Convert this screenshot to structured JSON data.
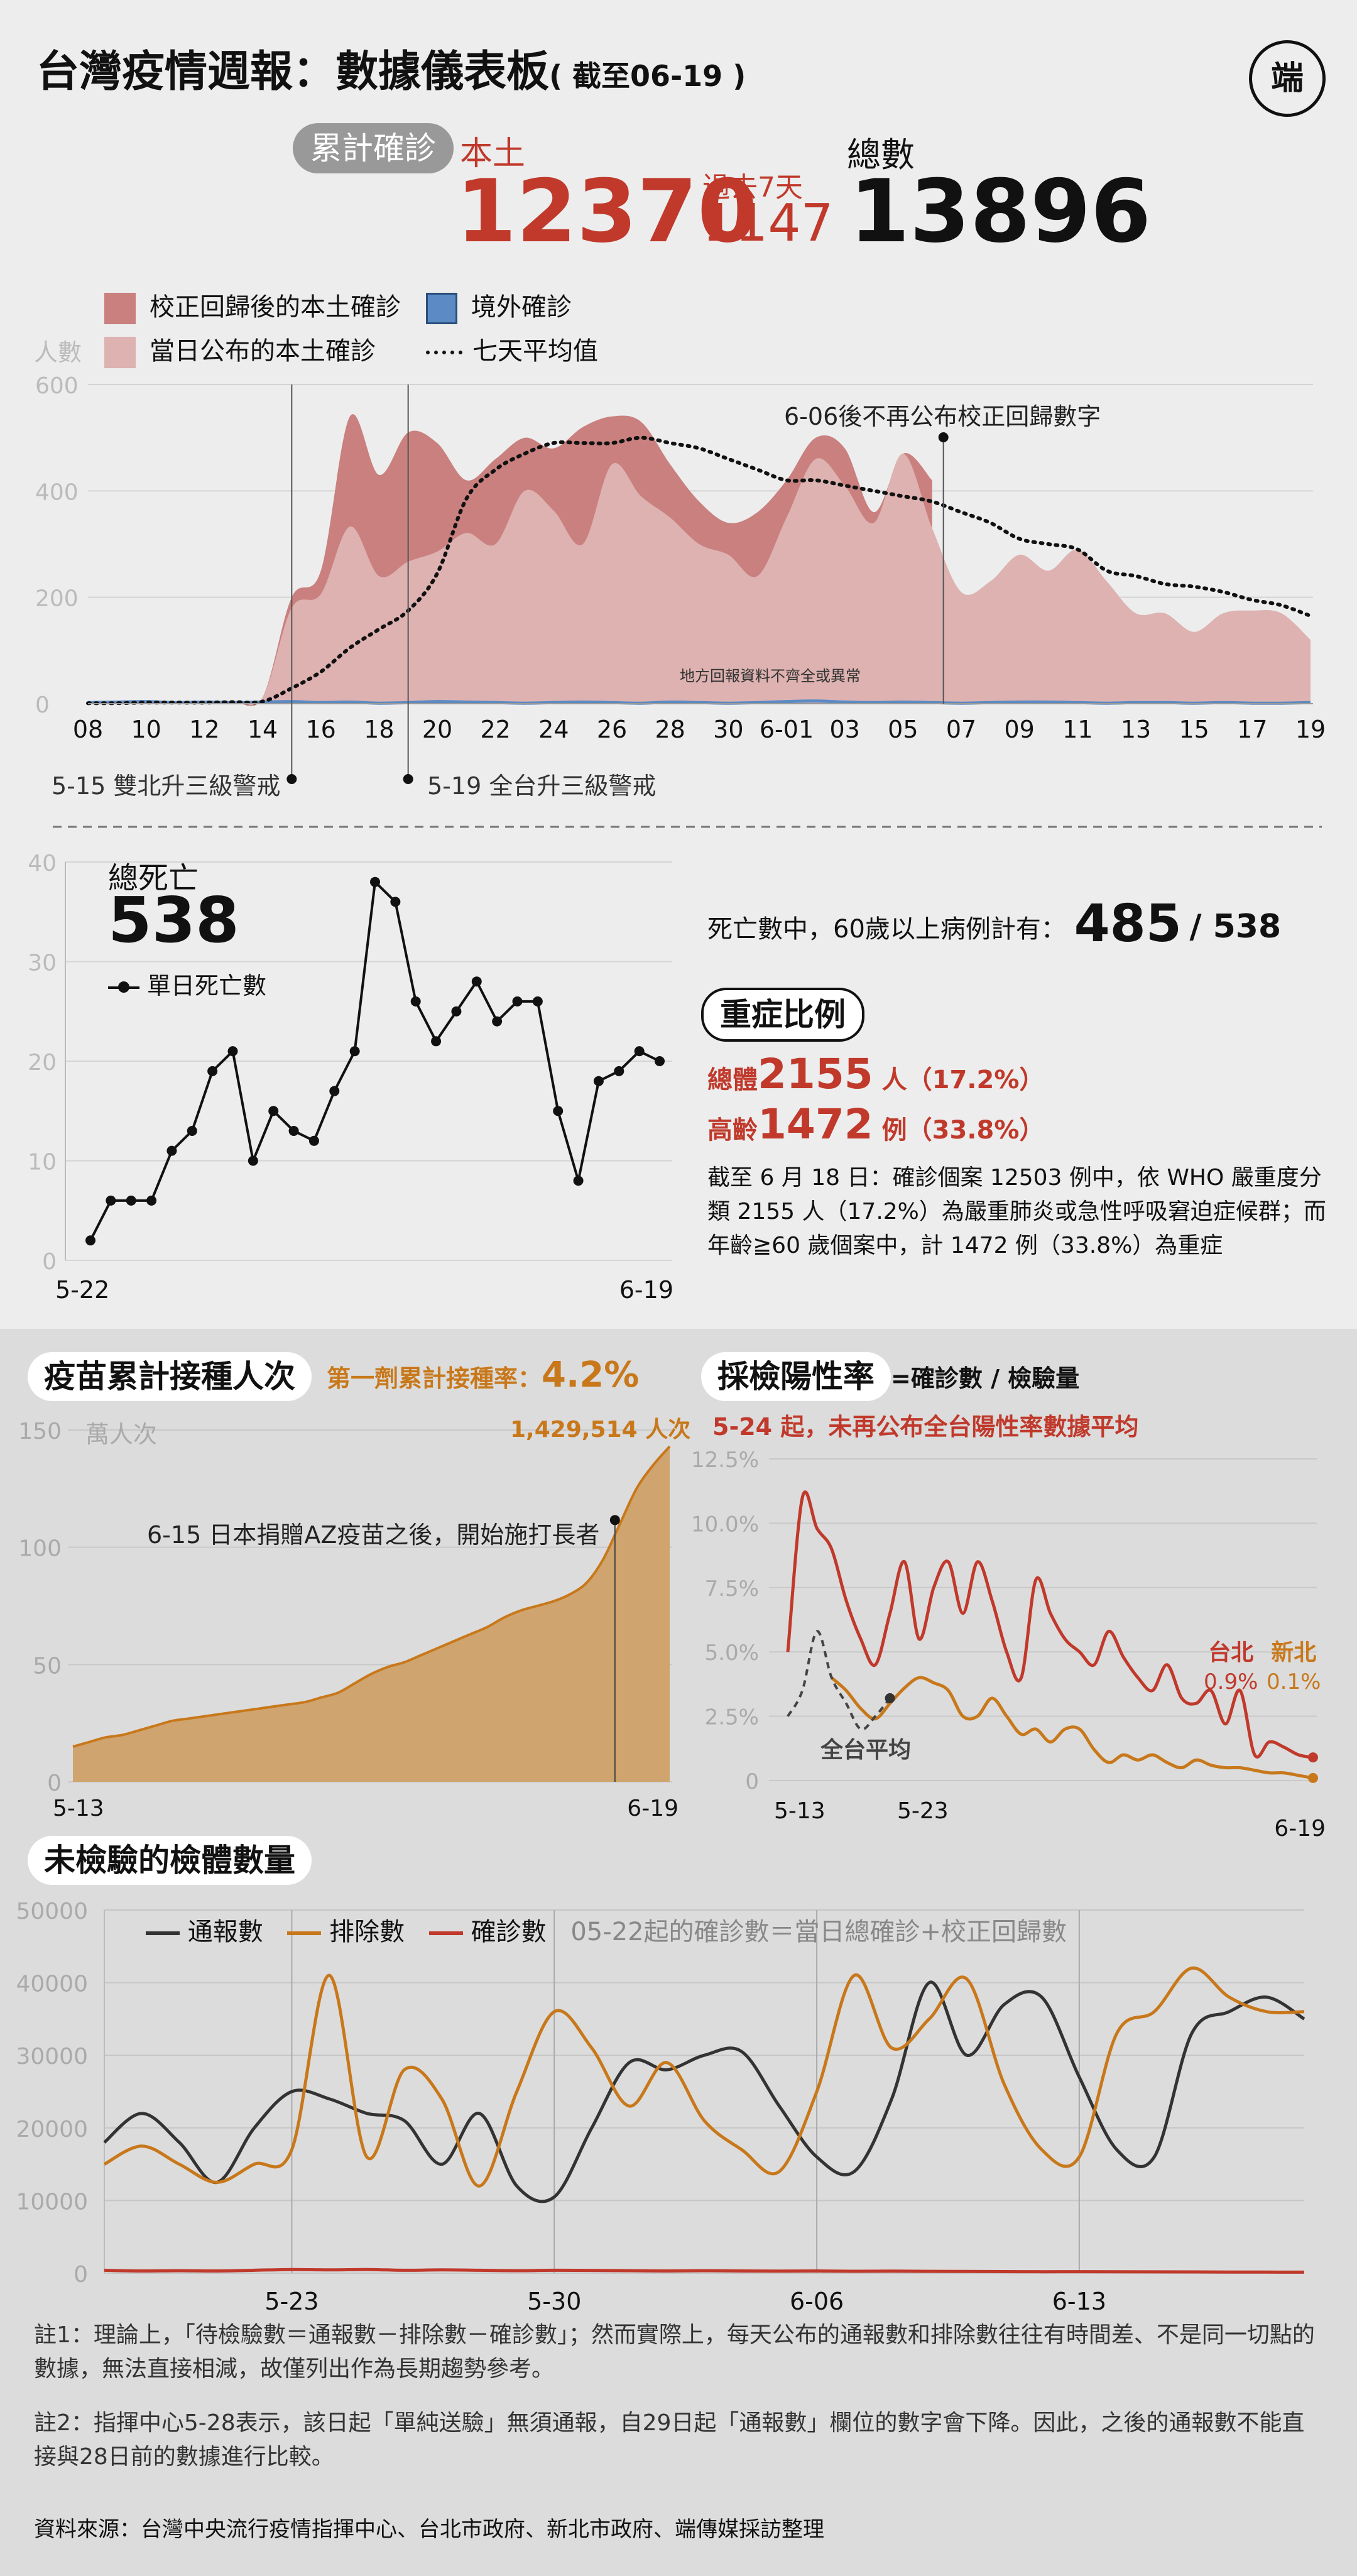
{
  "header": {
    "title": "台灣疫情週報：數據儀表板",
    "date_note": "( 截至06-19 )",
    "logo_text": "端"
  },
  "summary": {
    "pill": "累計確診",
    "local_label": "本土",
    "local_total": "12370",
    "past7_label": "過去7天",
    "past7_value": "1147",
    "total_label": "總數",
    "total_value": "13896"
  },
  "colors": {
    "corrected": "#c9807e",
    "announced": "#ddb2b0",
    "imported": "#5b8ac4",
    "red": "#c0392b",
    "orange": "#c8781a",
    "dark": "#333333"
  },
  "cases_chart": {
    "legend": [
      "校正回歸後的本土確診",
      "境外確診",
      "當日公布的本土確診",
      "七天平均值"
    ],
    "ylabel": "人數",
    "yticks": [
      "600",
      "400",
      "200",
      "0"
    ],
    "xticks": [
      "08",
      "10",
      "12",
      "14",
      "16",
      "18",
      "20",
      "22",
      "24",
      "26",
      "28",
      "30",
      "6-01",
      "03",
      "05",
      "07",
      "09",
      "11",
      "13",
      "15",
      "17",
      "19"
    ],
    "note_606": "6-06後不再公布校正回歸數字",
    "note_local": "地方回報資料不齊全或異常",
    "event_515": "5-15 雙北升三級警戒",
    "event_519": "5-19 全台升三級警戒"
  },
  "deaths": {
    "label": "總死亡",
    "total": "538",
    "legend": "單日死亡數",
    "yticks": [
      "40",
      "30",
      "20",
      "10",
      "0"
    ],
    "x_start": "5-22",
    "x_end": "6-19",
    "over60_text": "死亡數中，60歲以上病例計有：",
    "over60_value": "485",
    "over60_total": "/ 538"
  },
  "severe": {
    "pill": "重症比例",
    "overall_label": "總體",
    "overall_value": "2155",
    "overall_unit": "人（17.2%）",
    "elderly_label": "高齡",
    "elderly_value": "1472",
    "elderly_unit": "例（33.8%）",
    "paragraph": "截至 6 月 18 日：確診個案 12503 例中，依 WHO 嚴重度分類 2155 人（17.2%）為嚴重肺炎或急性呼吸窘迫症候群；而年齡≧60 歲個案中，計 1472 例（33.8%）為重症"
  },
  "vaccine": {
    "pill": "疫苗累計接種人次",
    "rate_label": "第一劑累計接種率：",
    "rate_value": "4.2%",
    "unit": "萬人次",
    "final_label": "1,429,514 人次",
    "yticks": [
      "150",
      "100",
      "50",
      "0"
    ],
    "annotation": "6-15 日本捐贈AZ疫苗之後，開始施打長者",
    "x_start": "5-13",
    "x_end": "6-19"
  },
  "positivity": {
    "pill": "採檢陽性率",
    "formula": "=確診數 / 檢驗量",
    "note": "5-24 起，未再公布全台陽性率數據平均",
    "yticks": [
      "12.5%",
      "10.0%",
      "7.5%",
      "5.0%",
      "2.5%",
      "0"
    ],
    "taipei_label": "台北",
    "taipei_value": "0.9%",
    "newtaipei_label": "新北",
    "newtaipei_value": "0.1%",
    "national_label": "全台平均",
    "x_labels": [
      "5-13",
      "5-23",
      "6-19"
    ]
  },
  "untested": {
    "pill": "未檢驗的檢體數量",
    "legend": [
      "通報數",
      "排除數",
      "確診數"
    ],
    "note": "05-22起的確診數＝當日總確診+校正回歸數",
    "yticks": [
      "50000",
      "40000",
      "30000",
      "20000",
      "10000",
      "0"
    ],
    "xticks": [
      "5-23",
      "5-30",
      "6-06",
      "6-13"
    ]
  },
  "footnotes": {
    "note1": "註1：理論上，「待檢驗數＝通報數－排除數－確診數」；然而實際上，每天公布的通報數和排除數往往有時間差、不是同一切點的數據，無法直接相減，故僅列出作為長期趨勢參考。",
    "note2": "註2：指揮中心5-28表示，該日起「單純送驗」無須通報，自29日起「通報數」欄位的數字會下降。因此，之後的通報數不能直接與28日前的數據進行比較。",
    "source": "資料來源：台灣中央流行疫情指揮中心、台北市政府、新北市政府、端傳媒採訪整理"
  },
  "chart_data": [
    {
      "type": "area",
      "title": "",
      "ylabel": "人數",
      "ylim": [
        0,
        600
      ],
      "x": [
        "05-08",
        "05-09",
        "05-10",
        "05-11",
        "05-12",
        "05-13",
        "05-14",
        "05-15",
        "05-16",
        "05-17",
        "05-18",
        "05-19",
        "05-20",
        "05-21",
        "05-22",
        "05-23",
        "05-24",
        "05-25",
        "05-26",
        "05-27",
        "05-28",
        "05-29",
        "05-30",
        "05-31",
        "06-01",
        "06-02",
        "06-03",
        "06-04",
        "06-05",
        "06-06",
        "06-07",
        "06-08",
        "06-09",
        "06-10",
        "06-11",
        "06-12",
        "06-13",
        "06-14",
        "06-15",
        "06-16",
        "06-17",
        "06-18",
        "06-19"
      ],
      "series": [
        {
          "name": "校正回歸後的本土確診",
          "values": [
            2,
            1,
            3,
            3,
            2,
            3,
            12,
            200,
            250,
            540,
            430,
            510,
            490,
            420,
            460,
            500,
            480,
            520,
            540,
            530,
            450,
            380,
            340,
            360,
            420,
            500,
            480,
            360,
            470,
            420,
            0,
            0,
            0,
            0,
            0,
            0,
            0,
            0,
            0,
            0,
            0,
            0,
            0
          ]
        },
        {
          "name": "當日公布的本土確診",
          "values": [
            2,
            1,
            3,
            3,
            2,
            3,
            12,
            180,
            206,
            333,
            240,
            267,
            286,
            321,
            300,
            400,
            363,
            300,
            450,
            390,
            350,
            300,
            280,
            240,
            350,
            460,
            410,
            340,
            470,
            330,
            210,
            230,
            280,
            250,
            290,
            230,
            170,
            170,
            135,
            170,
            175,
            170,
            120
          ]
        },
        {
          "name": "境外確診",
          "values": [
            2,
            3,
            4,
            2,
            3,
            2,
            3,
            4,
            2,
            3,
            1,
            2,
            4,
            3,
            2,
            1,
            2,
            3,
            2,
            1,
            3,
            2,
            1,
            2,
            4,
            5,
            3,
            2,
            3,
            2,
            1,
            2,
            3,
            3,
            2,
            1,
            2,
            2,
            1,
            2,
            1,
            1,
            2
          ]
        },
        {
          "name": "七天平均值",
          "values": [
            1,
            1,
            2,
            2,
            2,
            3,
            4,
            29,
            60,
            105,
            140,
            175,
            245,
            385,
            440,
            470,
            490,
            490,
            490,
            500,
            490,
            480,
            460,
            440,
            420,
            420,
            410,
            400,
            390,
            380,
            360,
            340,
            310,
            300,
            290,
            250,
            240,
            225,
            220,
            210,
            195,
            185,
            165
          ]
        }
      ]
    },
    {
      "type": "line",
      "title": "總死亡",
      "ylim": [
        0,
        40
      ],
      "x_start": "5-22",
      "x_end": "6-19",
      "series": [
        {
          "name": "單日死亡數",
          "values": [
            2,
            6,
            6,
            6,
            11,
            13,
            19,
            21,
            10,
            15,
            13,
            12,
            17,
            21,
            38,
            36,
            26,
            22,
            25,
            28,
            24,
            26,
            26,
            15,
            8,
            18,
            19,
            21,
            20
          ]
        }
      ]
    },
    {
      "type": "area",
      "title": "疫苗累計接種人次",
      "ylabel": "萬人次",
      "ylim": [
        0,
        150
      ],
      "x_start": "5-13",
      "x_end": "6-19",
      "series": [
        {
          "name": "疫苗累計接種人次",
          "values": [
            15,
            17,
            19,
            20,
            22,
            24,
            26,
            27,
            28,
            29,
            30,
            31,
            32,
            33,
            34,
            36,
            38,
            42,
            46,
            49,
            51,
            54,
            57,
            60,
            63,
            66,
            70,
            73,
            75,
            77,
            80,
            85,
            95,
            110,
            125,
            135,
            143
          ]
        }
      ]
    },
    {
      "type": "line",
      "title": "採檢陽性率",
      "ylim": [
        0,
        12.5
      ],
      "x_start": "5-13",
      "x_end": "6-19",
      "series": [
        {
          "name": "台北",
          "values": [
            5.0,
            11.0,
            9.8,
            9.0,
            7.0,
            5.5,
            4.5,
            6.5,
            8.5,
            5.5,
            7.5,
            8.5,
            6.5,
            8.5,
            7.0,
            5.0,
            4.0,
            7.8,
            6.5,
            5.5,
            5.0,
            4.5,
            5.8,
            4.8,
            4.0,
            3.5,
            4.5,
            3.2,
            3.0,
            3.5,
            2.2,
            3.5,
            1.0,
            1.5,
            1.3,
            1.0,
            0.9
          ]
        },
        {
          "name": "新北",
          "values": [
            null,
            null,
            null,
            4.0,
            3.5,
            2.8,
            2.4,
            3.0,
            3.6,
            4.0,
            3.8,
            3.5,
            2.5,
            2.5,
            3.2,
            2.5,
            1.8,
            2.0,
            1.5,
            2.0,
            2.0,
            1.2,
            0.7,
            1.0,
            0.8,
            1.0,
            0.7,
            0.5,
            0.8,
            0.6,
            0.5,
            0.5,
            0.4,
            0.3,
            0.3,
            0.2,
            0.1
          ]
        },
        {
          "name": "全台平均",
          "values": [
            2.5,
            3.5,
            5.8,
            4.0,
            3.0,
            2.0,
            2.5,
            3.2
          ]
        }
      ]
    },
    {
      "type": "line",
      "title": "未檢驗的檢體數量",
      "ylim": [
        0,
        50000
      ],
      "x_start": "05-18",
      "x_end": "06-19",
      "series": [
        {
          "name": "通報數",
          "values": [
            18000,
            22000,
            18000,
            12500,
            20000,
            25000,
            24000,
            22000,
            21000,
            15000,
            22000,
            12000,
            10500,
            20000,
            29000,
            28000,
            30000,
            30500,
            23000,
            16000,
            14000,
            24000,
            40000,
            30000,
            37000,
            38000,
            27000,
            17000,
            16000,
            33000,
            36000,
            38000,
            35000
          ]
        },
        {
          "name": "排除數",
          "values": [
            15000,
            17500,
            15000,
            12500,
            15000,
            17000,
            41000,
            16000,
            28000,
            24000,
            12000,
            25000,
            36000,
            31000,
            23000,
            29000,
            21000,
            17000,
            14000,
            25000,
            41000,
            31000,
            35000,
            40500,
            26000,
            17000,
            16000,
            33000,
            36000,
            42000,
            38000,
            36000,
            36000
          ]
        },
        {
          "name": "確診數",
          "values": [
            400,
            300,
            350,
            300,
            400,
            500,
            450,
            500,
            400,
            450,
            400,
            350,
            400,
            380,
            350,
            300,
            350,
            300,
            280,
            300,
            260,
            280,
            250,
            230,
            220,
            200,
            210,
            190,
            180,
            170,
            160,
            150,
            140
          ]
        }
      ]
    }
  ]
}
